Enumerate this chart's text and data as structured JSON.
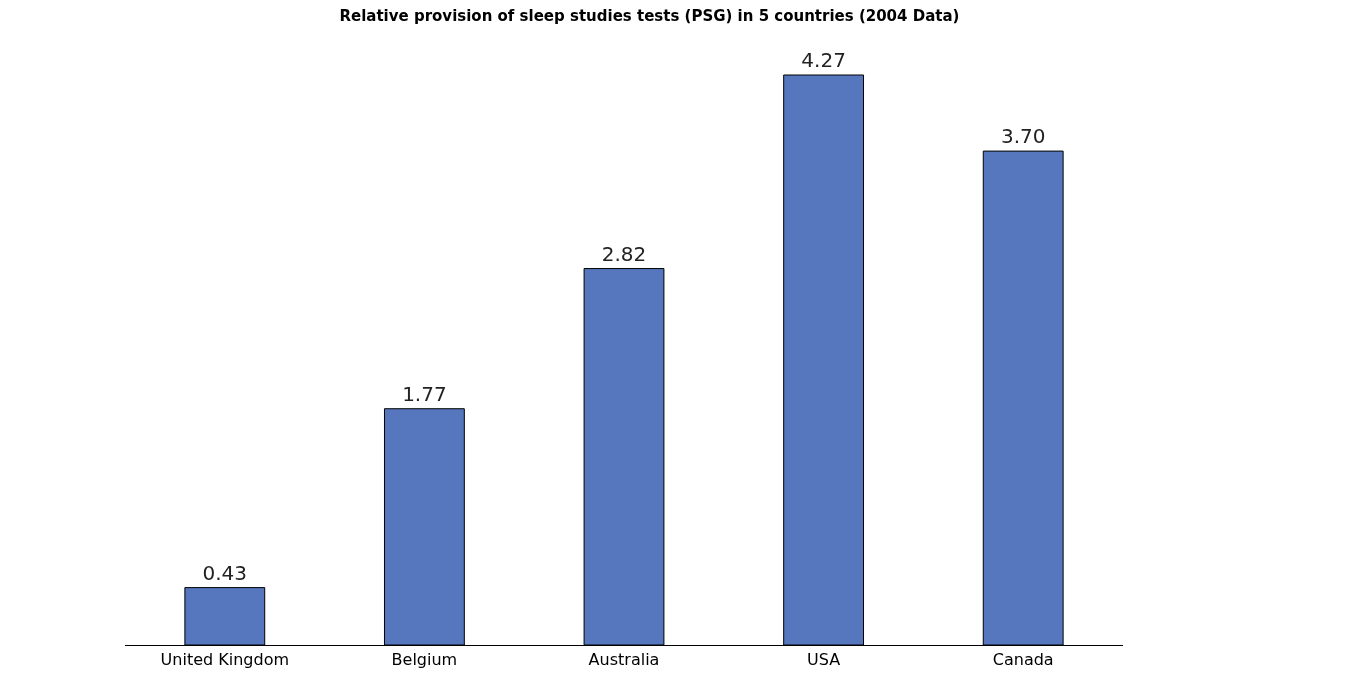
{
  "chart_data": {
    "type": "bar",
    "title": "Relative provision of sleep studies tests (PSG) in 5 countries (2004 Data)",
    "categories": [
      "United Kingdom",
      "Belgium",
      "Australia",
      "USA",
      "Canada"
    ],
    "values": [
      0.43,
      1.77,
      2.82,
      4.27,
      3.7
    ],
    "value_labels": [
      "0.43",
      "1.77",
      "2.82",
      "4.27",
      "3.70"
    ],
    "color": "#5676bd"
  }
}
